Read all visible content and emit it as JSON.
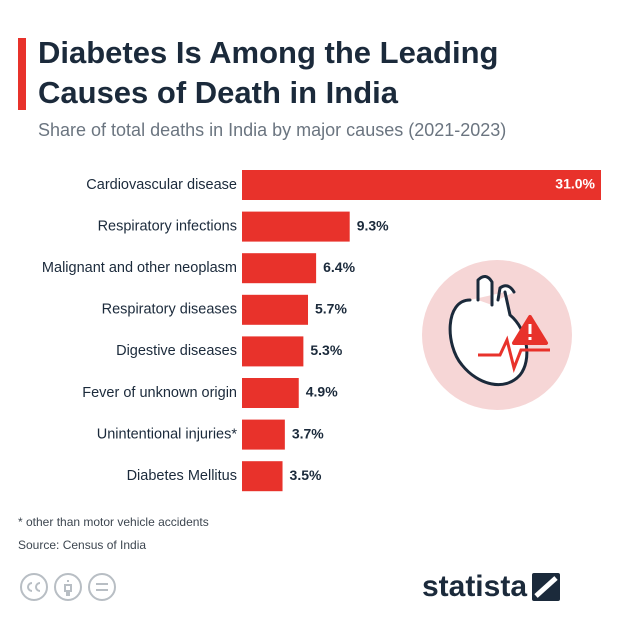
{
  "chart_data": {
    "type": "bar",
    "orientation": "horizontal",
    "title": "Diabetes Is Among the Leading Causes of Death in India",
    "subtitle": "Share of total deaths in India by major causes (2021-2023)",
    "categories": [
      "Cardiovascular disease",
      "Respiratory infections",
      "Malignant and other neoplasm",
      "Respiratory diseases",
      "Digestive diseases",
      "Fever of unknown origin",
      "Unintentional injuries*",
      "Diabetes Mellitus"
    ],
    "values": [
      31.0,
      9.3,
      6.4,
      5.7,
      5.3,
      4.9,
      3.7,
      3.5
    ],
    "value_labels": [
      "31.0%",
      "9.3%",
      "6.4%",
      "5.7%",
      "5.3%",
      "4.9%",
      "3.7%",
      "3.5%"
    ],
    "color": "#e8322b",
    "footnote": "* other than motor vehicle accidents",
    "source": "Source: Census of India",
    "brand": "statista"
  }
}
